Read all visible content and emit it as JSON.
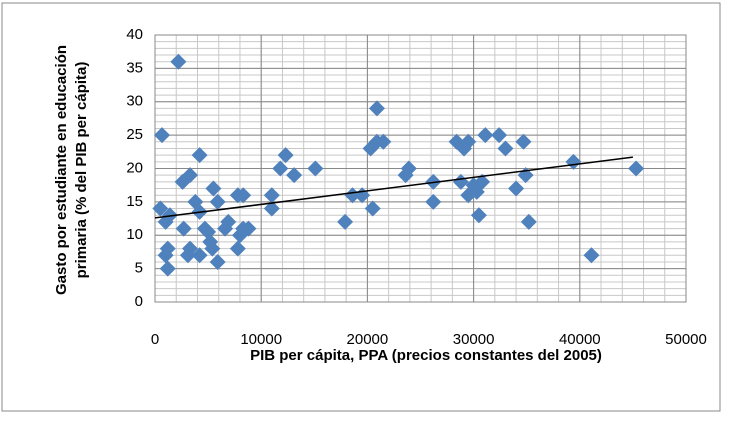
{
  "chart_data": {
    "type": "scatter",
    "ylabel": [
      "Gasto por estudiante en educación",
      "primaria (% del PIB per cápita)"
    ],
    "xlabel": "PIB per cápita, PPA (precios constantes del 2005)",
    "x": [
      660,
      2200,
      500,
      1000,
      1400,
      1200,
      1000,
      1200,
      2600,
      3300,
      2700,
      3300,
      3100,
      3800,
      4200,
      4200,
      4700,
      5000,
      4200,
      5200,
      5400,
      5500,
      5900,
      5900,
      6600,
      6900,
      7800,
      8300,
      7800,
      8300,
      8800,
      8000,
      11000,
      11000,
      11800,
      12300,
      13100,
      15100,
      17900,
      18600,
      19500,
      20300,
      20900,
      20900,
      20500,
      21500,
      23600,
      23900,
      26200,
      26200,
      28400,
      28800,
      29100,
      29500,
      29500,
      30000,
      30300,
      30500,
      30800,
      31100,
      32400,
      33000,
      34000,
      34700,
      34900,
      35200,
      39400,
      41100,
      45300
    ],
    "values": [
      25,
      36,
      14,
      12,
      13,
      8,
      7,
      5,
      18,
      19,
      11,
      8,
      7,
      15,
      13.5,
      22,
      11,
      10.5,
      7,
      9,
      8,
      17,
      15,
      6,
      11,
      12,
      16,
      16,
      8,
      11,
      11,
      10,
      16,
      14,
      20,
      22,
      19,
      20,
      12,
      16,
      16,
      23,
      24,
      29,
      14,
      24,
      19,
      20,
      18,
      15,
      24,
      18,
      23,
      24,
      16,
      17.5,
      16.5,
      13,
      18,
      25,
      25,
      23,
      17,
      24,
      19,
      12,
      21,
      7,
      20
    ],
    "color": "#4f81bd",
    "trendline": {
      "x": [
        0,
        45000
      ],
      "y": [
        12.6,
        21.7
      ],
      "color": "#000000"
    },
    "xlim": [
      0,
      50000
    ],
    "xticks": [
      0,
      10000,
      20000,
      30000,
      40000,
      50000
    ],
    "ylim": [
      0,
      40
    ],
    "yticks": [
      0,
      5,
      10,
      15,
      20,
      25,
      30,
      35,
      40
    ],
    "grid": true,
    "minor_grid": {
      "x": 2000,
      "y": 1
    }
  }
}
